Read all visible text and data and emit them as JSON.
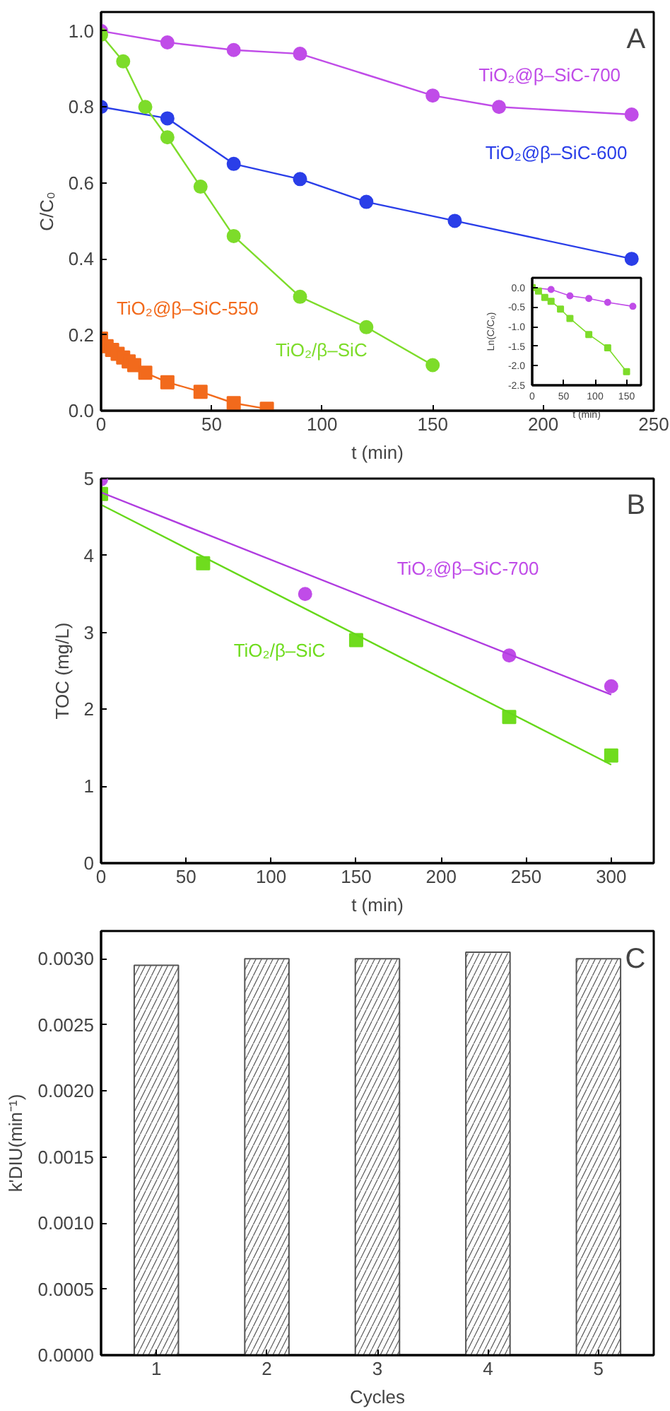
{
  "chart_data": [
    {
      "type": "line",
      "xlabel": "t (min)",
      "ylabel": "C/C₀",
      "annotations": [
        "A"
      ],
      "xlim": [
        0,
        250
      ],
      "xticks": [
        0,
        50,
        100,
        150,
        200,
        250
      ],
      "ylim": [
        0,
        1.05
      ],
      "yticks": [
        {
          "value": 0,
          "label": "0.0"
        },
        {
          "value": 0.2,
          "label": "0.2"
        },
        {
          "value": 0.4,
          "label": "0.4"
        },
        {
          "value": 0.6,
          "label": "0.6"
        },
        {
          "value": 0.8,
          "label": "0.8"
        },
        {
          "value": 1,
          "label": "1.0"
        }
      ],
      "grid": false,
      "legend": false,
      "line_style": "solid",
      "series": [
        {
          "name": "TiO₂@β–SiC-700",
          "color": "#c04ce8",
          "marker": "circle",
          "x": [
            0,
            30,
            60,
            90,
            150,
            180,
            240
          ],
          "values": [
            1.0,
            0.97,
            0.95,
            0.94,
            0.83,
            0.8,
            0.78
          ]
        },
        {
          "name": "TiO₂@β–SiC-600",
          "color": "#2a3ee8",
          "marker": "circle",
          "x": [
            0,
            30,
            60,
            90,
            120,
            160,
            240
          ],
          "values": [
            0.8,
            0.77,
            0.65,
            0.61,
            0.55,
            0.5,
            0.4
          ]
        },
        {
          "name": "TiO₂@β–SiC-550",
          "color": "#f26a1c",
          "marker": "square",
          "x": [
            0,
            2.5,
            5,
            7.5,
            10,
            12.5,
            15,
            20,
            30,
            45,
            60,
            75
          ],
          "values": [
            0.19,
            0.17,
            0.16,
            0.15,
            0.14,
            0.13,
            0.12,
            0.1,
            0.075,
            0.05,
            0.02,
            0.005
          ]
        },
        {
          "name": "TiO₂/β–SiC",
          "color": "#7ddc2a",
          "marker": "circle",
          "x": [
            0,
            10,
            20,
            30,
            45,
            60,
            90,
            120,
            150
          ],
          "values": [
            0.99,
            0.92,
            0.8,
            0.72,
            0.59,
            0.46,
            0.3,
            0.22,
            0.12
          ]
        }
      ]
    },
    {
      "type": "line",
      "xlabel": "t (min)",
      "ylabel": "Ln(C/C₀)",
      "xlim": [
        0,
        173
      ],
      "xticks": [
        0,
        50,
        100,
        150
      ],
      "ylim": [
        -2.5,
        0.25
      ],
      "yticks": [
        {
          "value": 0,
          "label": "0.0"
        },
        {
          "value": -0.5,
          "label": "-0.5"
        },
        {
          "value": -1,
          "label": "-1.0"
        },
        {
          "value": -1.5,
          "label": "-1.5"
        },
        {
          "value": -2,
          "label": "-2.0"
        },
        {
          "value": -2.5,
          "label": "-2.5"
        }
      ],
      "grid": false,
      "legend": false,
      "line_style": "solid",
      "series": [
        {
          "color": "#c04ce8",
          "marker": "circle",
          "x": [
            0,
            30,
            60,
            90,
            120,
            160
          ],
          "values": [
            0,
            -0.05,
            -0.21,
            -0.28,
            -0.38,
            -0.48
          ]
        },
        {
          "color": "#7ddc2a",
          "marker": "square",
          "x": [
            0,
            10,
            20,
            30,
            45,
            60,
            90,
            120,
            150
          ],
          "values": [
            0,
            -0.09,
            -0.25,
            -0.35,
            -0.55,
            -0.79,
            -1.2,
            -1.54,
            -2.15
          ]
        }
      ]
    },
    {
      "type": "scatter",
      "xlabel": "t (min)",
      "ylabel": "TOC (mg/L)",
      "annotations": [
        "B"
      ],
      "xlim": [
        0,
        325
      ],
      "xticks": [
        0,
        50,
        100,
        150,
        200,
        250,
        300
      ],
      "ylim": [
        0,
        5
      ],
      "yticks": [
        0,
        1,
        2,
        3,
        4,
        5
      ],
      "grid": false,
      "legend": false,
      "series": [
        {
          "name": "TiO₂@β–SiC-700",
          "color": "#c04ce8",
          "marker": "circle",
          "x": [
            0,
            120,
            240,
            300
          ],
          "values": [
            4.99,
            3.5,
            2.7,
            2.3
          ]
        },
        {
          "name": "TiO₂/β–SiC",
          "color": "#6fdc1e",
          "marker": "square",
          "x": [
            0,
            60,
            150,
            240,
            300
          ],
          "values": [
            4.8,
            3.9,
            2.9,
            1.9,
            1.4
          ]
        },
        {
          "type": "line",
          "color": "#b03ce0",
          "marker": "none",
          "x": [
            0,
            300
          ],
          "values": [
            4.82,
            2.19
          ]
        },
        {
          "type": "line",
          "color": "#66d81a",
          "marker": "none",
          "x": [
            0,
            300
          ],
          "values": [
            4.66,
            1.28
          ]
        }
      ]
    },
    {
      "type": "bar",
      "xlabel": "Cycles",
      "ylabel": "k'DIU(min⁻¹)",
      "annotations": [
        "C"
      ],
      "categories": [
        "1",
        "2",
        "3",
        "4",
        "5"
      ],
      "values": [
        0.00295,
        0.003,
        0.003,
        0.00305,
        0.003
      ],
      "color": "#555555",
      "ylim": [
        0,
        0.00321
      ],
      "yticks": [
        {
          "value": 0,
          "label": "0.0000"
        },
        {
          "value": 0.0005,
          "label": "0.0005"
        },
        {
          "value": 0.001,
          "label": "0.0010"
        },
        {
          "value": 0.0015,
          "label": "0.0015"
        },
        {
          "value": 0.002,
          "label": "0.0020"
        },
        {
          "value": 0.0025,
          "label": "0.0025"
        },
        {
          "value": 0.003,
          "label": "0.0030"
        }
      ],
      "grid": false,
      "legend": false
    }
  ]
}
